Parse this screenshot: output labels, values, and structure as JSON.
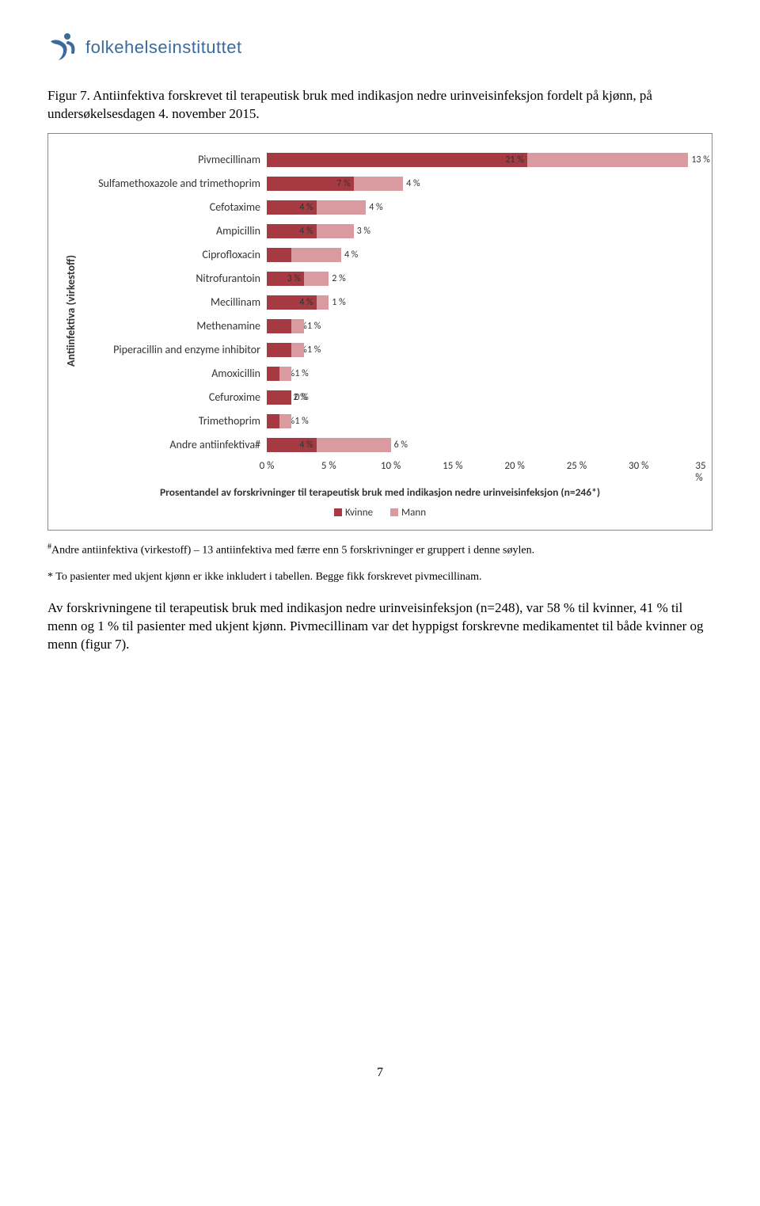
{
  "logo_text": "folkehelseinstituttet",
  "logo_color": "#3b6b9b",
  "figure_caption": "Figur 7. Antiinfektiva forskrevet til terapeutisk bruk med indikasjon nedre urinveisinfeksjon fordelt på kjønn, på undersøkelsesdagen 4. november 2015.",
  "chart": {
    "type": "stacked-horizontal-bar",
    "yaxis_title": "Antiinfektiva (virkestoff)",
    "xaxis_title": "Prosentandel av forskrivninger til terapeutisk bruk med indikasjon nedre urinveisinfeksjon (n=246*)",
    "xmax": 35,
    "xticks": [
      0,
      5,
      10,
      15,
      20,
      25,
      30,
      35
    ],
    "xtick_labels": [
      "0 %",
      "5 %",
      "10 %",
      "15 %",
      "20 %",
      "25 %",
      "30 %",
      "35 %"
    ],
    "colors": {
      "kvinne": "#a63a42",
      "mann": "#d99aa0"
    },
    "legend": [
      {
        "label": "Kvinne",
        "key": "kvinne"
      },
      {
        "label": "Mann",
        "key": "mann"
      }
    ],
    "categories": [
      {
        "label": "Pivmecillinam",
        "kvinne": 21,
        "mann": 13,
        "k_lbl": "21 %",
        "m_lbl": "13 %"
      },
      {
        "label": "Sulfamethoxazole and trimethoprim",
        "kvinne": 7,
        "mann": 4,
        "k_lbl": "7 %",
        "m_lbl": "4 %"
      },
      {
        "label": "Cefotaxime",
        "kvinne": 4,
        "mann": 4,
        "k_lbl": "4 %",
        "m_lbl": "4 %"
      },
      {
        "label": "Ampicillin",
        "kvinne": 4,
        "mann": 3,
        "k_lbl": "4 %",
        "m_lbl": "3 %"
      },
      {
        "label": "Ciprofloxacin",
        "kvinne": 2,
        "mann": 4,
        "k_lbl": "2 %",
        "m_lbl": "4 %"
      },
      {
        "label": "Nitrofurantoin",
        "kvinne": 3,
        "mann": 2,
        "k_lbl": "3 %",
        "m_lbl": "2 %"
      },
      {
        "label": "Mecillinam",
        "kvinne": 4,
        "mann": 1,
        "k_lbl": "4 %",
        "m_lbl": "1 %"
      },
      {
        "label": "Methenamine",
        "kvinne": 2,
        "mann": 1,
        "k_lbl": "2 %",
        "m_lbl": "1 %"
      },
      {
        "label": "Piperacillin and enzyme inhibitor",
        "kvinne": 2,
        "mann": 1,
        "k_lbl": "2 %",
        "m_lbl": "1 %"
      },
      {
        "label": "Amoxicillin",
        "kvinne": 1,
        "mann": 1,
        "k_lbl": "1 %",
        "m_lbl": "1 %"
      },
      {
        "label": "Cefuroxime",
        "kvinne": 2,
        "mann": 0,
        "k_lbl": "2 %",
        "m_lbl": "0 %"
      },
      {
        "label": "Trimethoprim",
        "kvinne": 1,
        "mann": 1,
        "k_lbl": "1 %",
        "m_lbl": "1 %"
      },
      {
        "label": "Andre antiinfektiva#",
        "kvinne": 4,
        "mann": 6,
        "k_lbl": "4 %",
        "m_lbl": "6 %"
      }
    ]
  },
  "footnote_hash": "#Andre antiinfektiva (virkestoff) – 13 antiinfektiva med færre enn 5 forskrivninger er gruppert i denne søylen.",
  "footnote_star": "* To pasienter med ukjent kjønn er ikke inkludert i tabellen. Begge fikk forskrevet pivmecillinam.",
  "body_paragraph": "Av forskrivningene til terapeutisk bruk med indikasjon nedre urinveisinfeksjon (n=248), var 58 % til kvinner, 41 % til menn og 1 % til pasienter med ukjent kjønn. Pivmecillinam var det hyppigst forskrevne medikamentet til både kvinner og menn (figur 7).",
  "page_number": "7"
}
